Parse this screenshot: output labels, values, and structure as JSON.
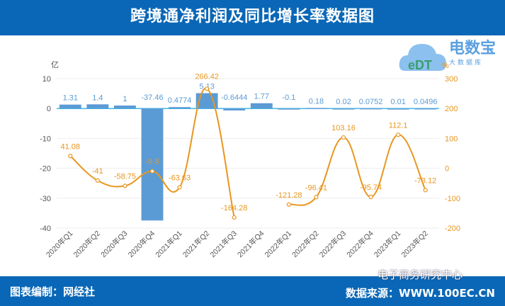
{
  "header": {
    "title": "跨境通净利润及同比增长率数据图"
  },
  "footer": {
    "left": "图表编制：网经社",
    "right": "数据来源：WWW.100EC.CN",
    "watermark": "电子商务研究中心"
  },
  "logo": {
    "brand": "电数宝",
    "sub": "大数据库",
    "mark": "eDT"
  },
  "colors": {
    "header": "#0a67b7",
    "bar": "#5b9bd5",
    "line": "#e8961e",
    "left_axis_text": "#555555",
    "right_axis_text": "#e8961e"
  },
  "chart_data": {
    "type": "bar+line",
    "categories": [
      "2020年Q1",
      "2020年Q2",
      "2020年Q3",
      "2020年Q4",
      "2021年Q1",
      "2021年Q2",
      "2021年Q3",
      "2021年Q4",
      "2022年Q1",
      "2022年Q2",
      "2022年Q3",
      "2022年Q4",
      "2023年Q1",
      "2023年Q2"
    ],
    "left_unit": "亿",
    "right_unit": "%",
    "left_ylim": [
      -40,
      10
    ],
    "left_ticks": [
      10,
      0,
      -10,
      -20,
      -30,
      -40
    ],
    "right_ylim": [
      -200,
      300
    ],
    "right_ticks": [
      300,
      200,
      100,
      0,
      -100,
      -200
    ],
    "grid": true,
    "series": [
      {
        "kind": "bar",
        "axis": "left",
        "values": [
          1.31,
          1.4,
          1,
          -37.46,
          0.4774,
          5.13,
          -0.6444,
          1.77,
          -0.1,
          0.18,
          0.02,
          0.0752,
          0.01,
          0.0496
        ]
      },
      {
        "kind": "line",
        "axis": "right",
        "smooth": true,
        "values": [
          41.08,
          -41,
          -58.75,
          -9.8,
          -63.63,
          266.42,
          -164.28,
          null,
          -121.28,
          -96.41,
          103.16,
          -95.74,
          112.1,
          -73.12
        ]
      }
    ]
  }
}
